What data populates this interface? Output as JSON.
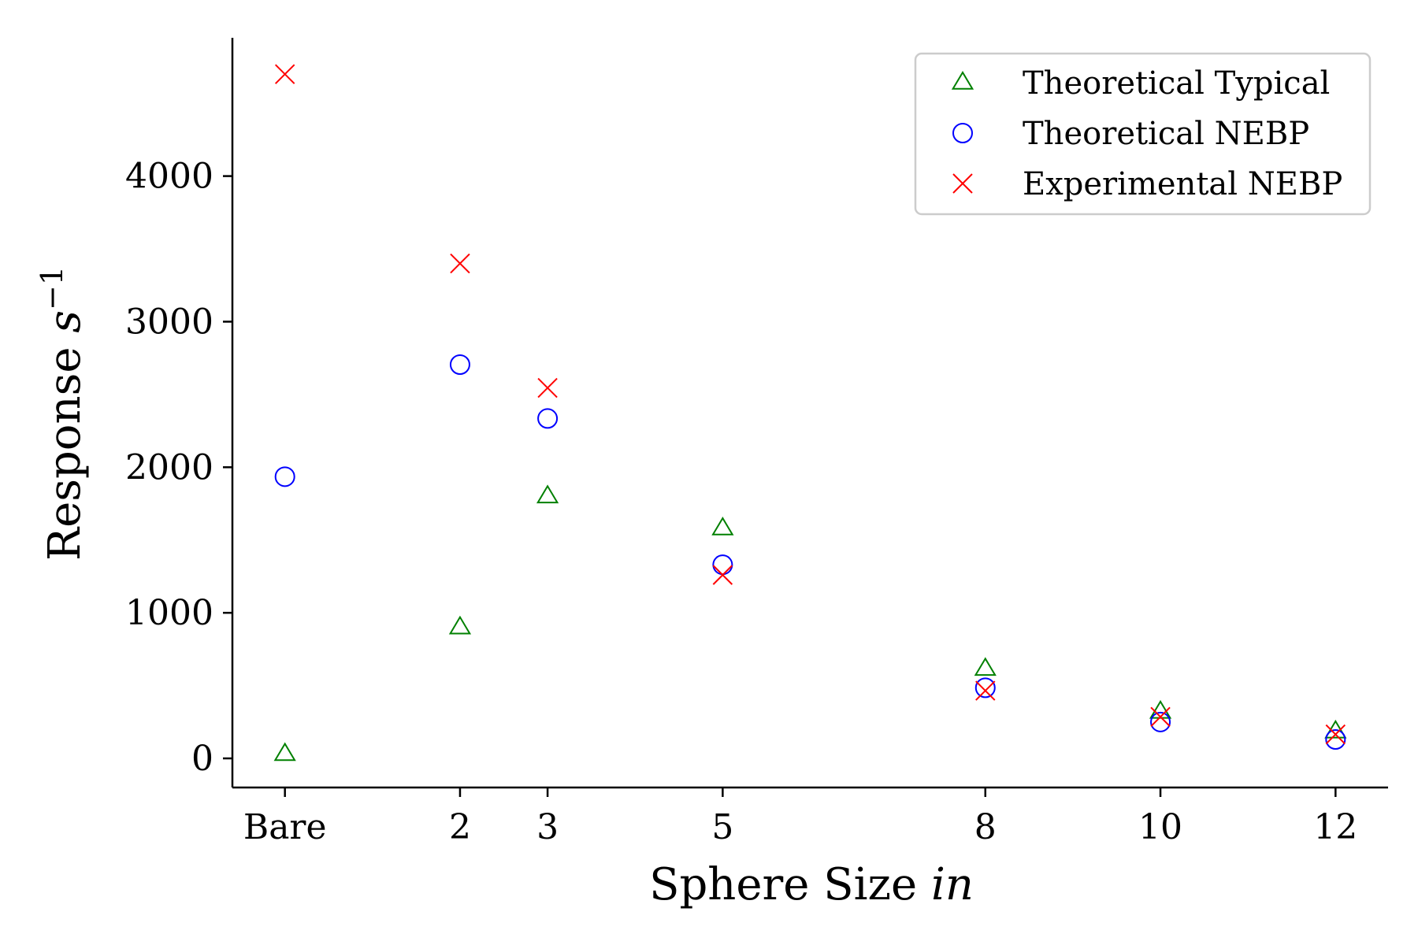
{
  "chart_data": {
    "type": "scatter",
    "title": "",
    "xlabel": "Sphere Size",
    "xlabel_unit": "in",
    "ylabel": "Response",
    "ylabel_unit": "s",
    "ylabel_exponent": "−1",
    "x_positions": [
      0,
      2,
      3,
      5,
      8,
      10,
      12
    ],
    "x_tick_labels": [
      "Bare",
      "2",
      "3",
      "5",
      "8",
      "10",
      "12"
    ],
    "xlim": [
      -0.6,
      12.6
    ],
    "ylim": [
      -200,
      4950
    ],
    "y_ticks": [
      0,
      1000,
      2000,
      3000,
      4000
    ],
    "y_tick_labels": [
      "0",
      "1000",
      "2000",
      "3000",
      "4000"
    ],
    "grid": false,
    "legend_position": "top-right",
    "series": [
      {
        "name": "Theoretical Typical",
        "marker": "triangle",
        "color": "#008000",
        "values": [
          30,
          900,
          1800,
          1580,
          615,
          320,
          185
        ]
      },
      {
        "name": "Theoretical NEBP",
        "marker": "circle",
        "color": "#0000ff",
        "values": [
          1935,
          2705,
          2335,
          1330,
          485,
          250,
          130
        ]
      },
      {
        "name": "Experimental NEBP",
        "marker": "x",
        "color": "#ff0000",
        "values": [
          4700,
          3400,
          2545,
          1260,
          465,
          285,
          165
        ]
      }
    ]
  }
}
